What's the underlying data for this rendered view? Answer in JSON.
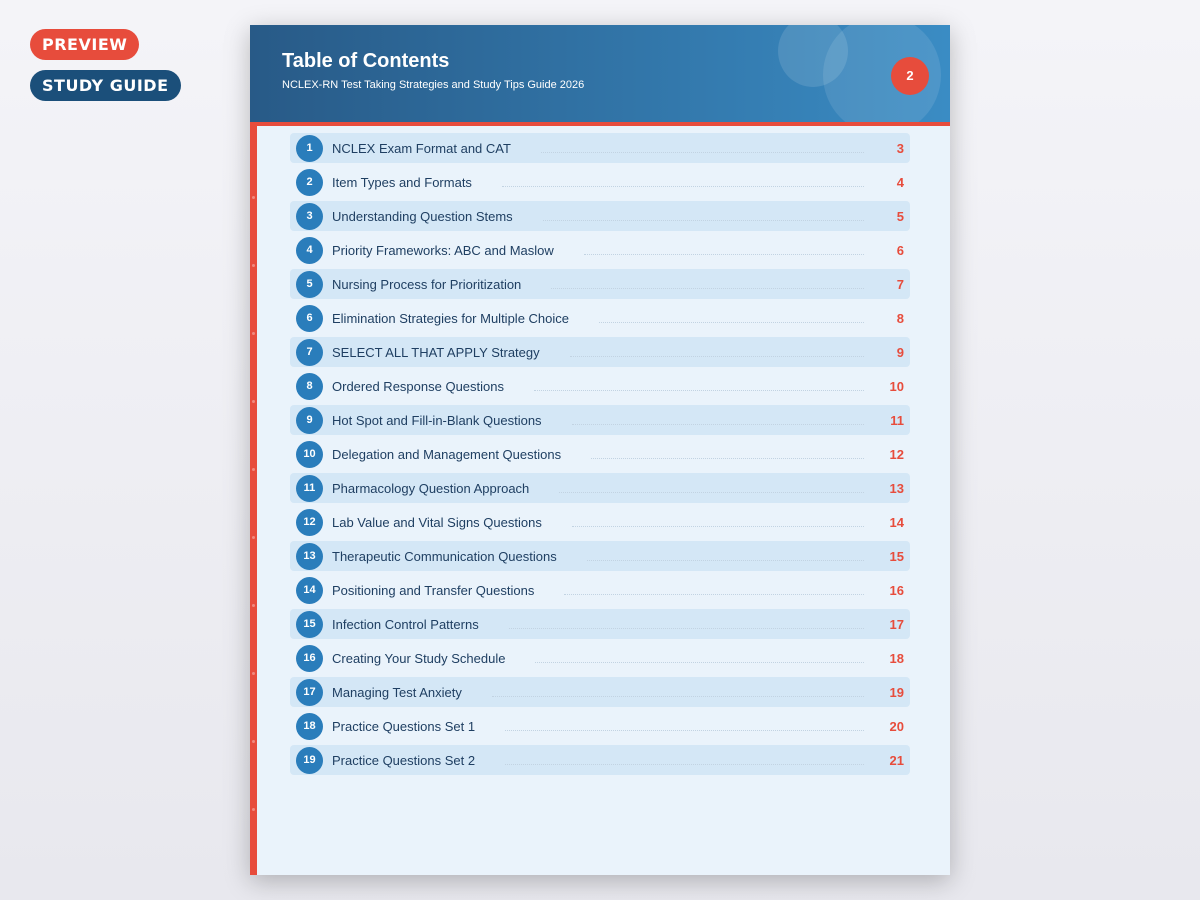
{
  "badges": {
    "preview": "PREVIEW",
    "study_guide": "STUDY GUIDE"
  },
  "header": {
    "title": "Table of Contents",
    "subtitle": "NCLEX-RN Test Taking Strategies and Study Tips Guide 2026",
    "page_number": "2"
  },
  "colors": {
    "accent": "#e74c3c",
    "primary": "#2a7dbb",
    "header_dark": "#285a87"
  },
  "toc": [
    {
      "num": "1",
      "title": "NCLEX Exam Format and CAT",
      "page": "3"
    },
    {
      "num": "2",
      "title": "Item Types and Formats",
      "page": "4"
    },
    {
      "num": "3",
      "title": "Understanding Question Stems",
      "page": "5"
    },
    {
      "num": "4",
      "title": "Priority Frameworks: ABC and Maslow",
      "page": "6"
    },
    {
      "num": "5",
      "title": "Nursing Process for Prioritization",
      "page": "7"
    },
    {
      "num": "6",
      "title": "Elimination Strategies for Multiple Choice",
      "page": "8"
    },
    {
      "num": "7",
      "title": "SELECT ALL THAT APPLY Strategy",
      "page": "9"
    },
    {
      "num": "8",
      "title": "Ordered Response Questions",
      "page": "10"
    },
    {
      "num": "9",
      "title": "Hot Spot and Fill-in-Blank Questions",
      "page": "11"
    },
    {
      "num": "10",
      "title": "Delegation and Management Questions",
      "page": "12"
    },
    {
      "num": "11",
      "title": "Pharmacology Question Approach",
      "page": "13"
    },
    {
      "num": "12",
      "title": "Lab Value and Vital Signs Questions",
      "page": "14"
    },
    {
      "num": "13",
      "title": "Therapeutic Communication Questions",
      "page": "15"
    },
    {
      "num": "14",
      "title": "Positioning and Transfer Questions",
      "page": "16"
    },
    {
      "num": "15",
      "title": "Infection Control Patterns",
      "page": "17"
    },
    {
      "num": "16",
      "title": "Creating Your Study Schedule",
      "page": "18"
    },
    {
      "num": "17",
      "title": "Managing Test Anxiety",
      "page": "19"
    },
    {
      "num": "18",
      "title": "Practice Questions Set 1",
      "page": "20"
    },
    {
      "num": "19",
      "title": "Practice Questions Set 2",
      "page": "21"
    }
  ]
}
